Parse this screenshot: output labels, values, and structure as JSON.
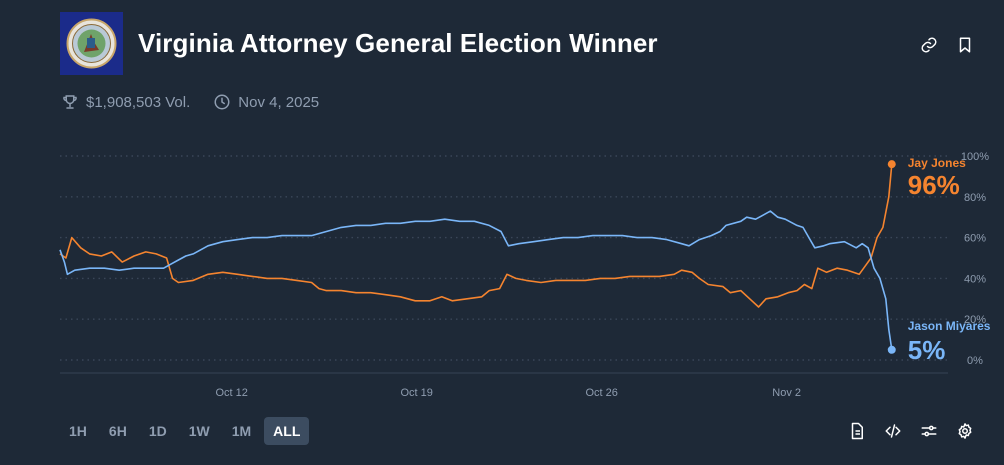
{
  "header": {
    "title": "Virginia Attorney General Election Winner",
    "flag_icon": "virginia-flag-icon",
    "link_icon": "link-icon",
    "bookmark_icon": "bookmark-icon"
  },
  "meta": {
    "volume": "$1,908,503 Vol.",
    "date": "Nov 4, 2025",
    "volume_icon": "trophy-icon",
    "date_icon": "clock-icon"
  },
  "chart_data": {
    "type": "line",
    "x_tick_labels": [
      "Oct 12",
      "Oct 19",
      "Oct 26",
      "Nov 2"
    ],
    "y_tick_labels": [
      "100%",
      "80%",
      "60%",
      "40%",
      "20%",
      "0%"
    ],
    "ylim": [
      0,
      100
    ],
    "grid": true,
    "legend": "end-labels",
    "series": [
      {
        "name": "Jay Jones",
        "color": "#f5842f",
        "end_value": "96%",
        "points": [
          [
            0,
            52
          ],
          [
            0.4,
            50
          ],
          [
            0.8,
            60
          ],
          [
            1.4,
            55
          ],
          [
            2,
            52
          ],
          [
            2.8,
            51
          ],
          [
            3.5,
            53
          ],
          [
            4.2,
            48
          ],
          [
            5,
            51
          ],
          [
            5.8,
            53
          ],
          [
            6.5,
            52
          ],
          [
            7.2,
            50
          ],
          [
            7.6,
            40
          ],
          [
            8,
            38
          ],
          [
            9,
            39
          ],
          [
            10,
            42
          ],
          [
            11,
            43
          ],
          [
            12,
            42
          ],
          [
            13,
            41
          ],
          [
            14,
            40
          ],
          [
            15,
            40
          ],
          [
            16,
            39
          ],
          [
            17,
            38
          ],
          [
            17.5,
            35
          ],
          [
            18,
            34
          ],
          [
            19,
            34
          ],
          [
            20,
            33
          ],
          [
            21,
            33
          ],
          [
            22,
            32
          ],
          [
            23,
            31
          ],
          [
            24,
            29
          ],
          [
            25,
            29
          ],
          [
            25.8,
            31
          ],
          [
            26.5,
            29
          ],
          [
            27.5,
            30
          ],
          [
            28.5,
            31
          ],
          [
            29,
            34
          ],
          [
            29.7,
            35
          ],
          [
            30.2,
            42
          ],
          [
            30.8,
            40
          ],
          [
            31.5,
            39
          ],
          [
            32.5,
            38
          ],
          [
            33.5,
            39
          ],
          [
            34.5,
            39
          ],
          [
            35.5,
            39
          ],
          [
            36.5,
            40
          ],
          [
            37.5,
            40
          ],
          [
            38.5,
            41
          ],
          [
            39.5,
            41
          ],
          [
            40.5,
            41
          ],
          [
            41.5,
            42
          ],
          [
            42,
            44
          ],
          [
            42.7,
            43
          ],
          [
            43.2,
            40
          ],
          [
            43.8,
            37
          ],
          [
            44.8,
            36
          ],
          [
            45.3,
            33
          ],
          [
            46,
            34
          ],
          [
            46.6,
            30
          ],
          [
            47.2,
            26
          ],
          [
            47.7,
            30
          ],
          [
            48.5,
            31
          ],
          [
            49.2,
            33
          ],
          [
            49.8,
            34
          ],
          [
            50.3,
            37
          ],
          [
            50.8,
            35
          ],
          [
            51.2,
            45
          ],
          [
            51.8,
            43
          ],
          [
            52.5,
            45
          ],
          [
            53.2,
            44
          ],
          [
            54,
            42
          ],
          [
            54.4,
            46
          ],
          [
            54.8,
            50
          ],
          [
            55.2,
            60
          ],
          [
            55.6,
            65
          ],
          [
            56,
            80
          ],
          [
            56.2,
            96
          ]
        ]
      },
      {
        "name": "Jason Miyares",
        "color": "#7ab6f8",
        "end_value": "5%",
        "points": [
          [
            0,
            54
          ],
          [
            0.3,
            48
          ],
          [
            0.5,
            42
          ],
          [
            1,
            44
          ],
          [
            2,
            45
          ],
          [
            3,
            45
          ],
          [
            4,
            44
          ],
          [
            5,
            45
          ],
          [
            6,
            45
          ],
          [
            7,
            45
          ],
          [
            7.5,
            47
          ],
          [
            8,
            49
          ],
          [
            8.5,
            51
          ],
          [
            9,
            52
          ],
          [
            10,
            56
          ],
          [
            11,
            58
          ],
          [
            12,
            59
          ],
          [
            13,
            60
          ],
          [
            14,
            60
          ],
          [
            15,
            61
          ],
          [
            16,
            61
          ],
          [
            17,
            61
          ],
          [
            18,
            63
          ],
          [
            19,
            65
          ],
          [
            20,
            66
          ],
          [
            21,
            66
          ],
          [
            22,
            67
          ],
          [
            23,
            67
          ],
          [
            24,
            68
          ],
          [
            25,
            68
          ],
          [
            26,
            69
          ],
          [
            27,
            68
          ],
          [
            28,
            68
          ],
          [
            29,
            66
          ],
          [
            29.8,
            63
          ],
          [
            30.3,
            56
          ],
          [
            31,
            57
          ],
          [
            32,
            58
          ],
          [
            33,
            59
          ],
          [
            34,
            60
          ],
          [
            35,
            60
          ],
          [
            36,
            61
          ],
          [
            37,
            61
          ],
          [
            38,
            61
          ],
          [
            39,
            60
          ],
          [
            40,
            60
          ],
          [
            41,
            59
          ],
          [
            42,
            57
          ],
          [
            42.5,
            56
          ],
          [
            43.2,
            59
          ],
          [
            44,
            61
          ],
          [
            44.6,
            63
          ],
          [
            45,
            66
          ],
          [
            46,
            68
          ],
          [
            46.4,
            70
          ],
          [
            47,
            69
          ],
          [
            47.5,
            71
          ],
          [
            48,
            73
          ],
          [
            48.5,
            70
          ],
          [
            49,
            69
          ],
          [
            49.8,
            66
          ],
          [
            50.2,
            65
          ],
          [
            50.6,
            60
          ],
          [
            51,
            55
          ],
          [
            51.6,
            56
          ],
          [
            52,
            57
          ],
          [
            53,
            58
          ],
          [
            53.8,
            55
          ],
          [
            54.2,
            57
          ],
          [
            54.6,
            55
          ],
          [
            55,
            45
          ],
          [
            55.4,
            40
          ],
          [
            55.8,
            30
          ],
          [
            56,
            15
          ],
          [
            56.2,
            5
          ]
        ]
      }
    ]
  },
  "ranges": [
    "1H",
    "6H",
    "1D",
    "1W",
    "1M",
    "ALL"
  ],
  "active_range": "ALL",
  "tools": {
    "doc_icon": "document-icon",
    "embed_icon": "code-embed-icon",
    "filters_icon": "sliders-icon",
    "settings_icon": "gear-icon"
  }
}
